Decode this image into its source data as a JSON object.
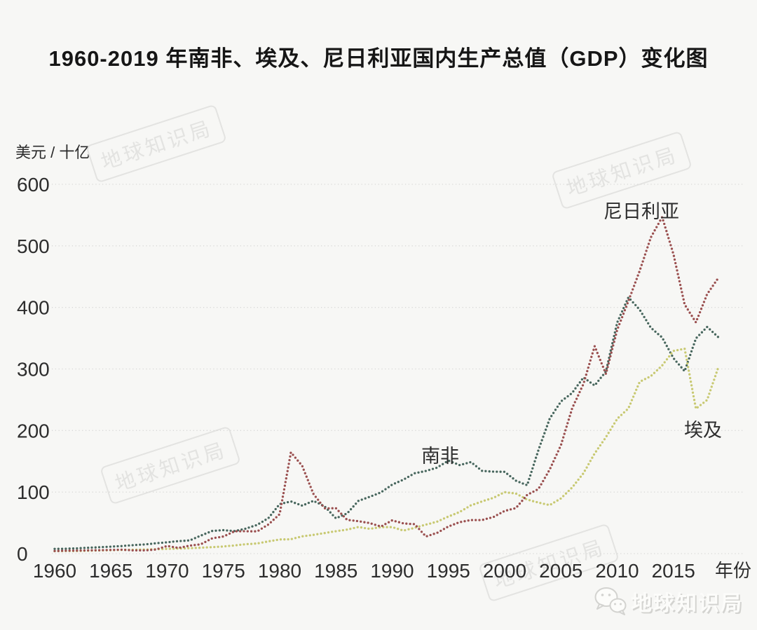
{
  "title": "1960-2019 年南非、埃及、尼日利亚国内生产总值（GDP）变化图",
  "y_unit_label": "美元 / 十亿",
  "watermark_text": "地球知识局",
  "logo_text": "地球知识局",
  "colors": {
    "background": "#f7f7f5",
    "grid": "#d8d8d6",
    "tick_text": "#2d2d2d",
    "south_africa": "#47665d",
    "egypt": "#c8c972",
    "nigeria": "#9a4f4f"
  },
  "chart_data": {
    "type": "line",
    "line_style": "dotted",
    "title": "1960-2019 年南非、埃及、尼日利亚国内生产总值（GDP）变化图",
    "xlabel": "年份",
    "ylabel": "美元 / 十亿",
    "x_start": 1960,
    "x_end": 2019,
    "x_ticks": [
      1960,
      1965,
      1970,
      1975,
      1980,
      1985,
      1990,
      1995,
      2000,
      2005,
      2010,
      2015
    ],
    "y_ticks": [
      0,
      100,
      200,
      300,
      400,
      500,
      600
    ],
    "ylim": [
      0,
      600
    ],
    "grid": true,
    "legend_position": "inline-annotations",
    "series": [
      {
        "name": "南非",
        "color": "#47665d",
        "values": [
          7.6,
          8.0,
          8.6,
          9.5,
          10.4,
          11.3,
          12.3,
          13.8,
          14.9,
          16.8,
          18.4,
          20.3,
          21.4,
          29.3,
          36.8,
          38.1,
          36.6,
          40.7,
          46.7,
          57.6,
          80.5,
          84.8,
          77.9,
          85.8,
          76.7,
          57.3,
          65.4,
          85.7,
          92.2,
          99.5,
          112.0,
          120.2,
          130.5,
          134.3,
          139.8,
          151.1,
          143.8,
          148.8,
          134.3,
          133.2,
          132.9,
          118.5,
          111.1,
          168.2,
          219.1,
          247.1,
          261.0,
          286.2,
          273.1,
          295.9,
          375.3,
          416.4,
          396.3,
          366.8,
          351.1,
          317.6,
          296.4,
          349.5,
          368.3,
          351.4
        ]
      },
      {
        "name": "埃及",
        "color": "#c8c972",
        "values": [
          4.0,
          4.2,
          4.3,
          4.7,
          5.1,
          5.6,
          6.0,
          6.3,
          6.6,
          7.1,
          7.7,
          8.2,
          8.8,
          9.6,
          10.5,
          11.6,
          13.3,
          15.3,
          16.5,
          19.9,
          22.9,
          23.4,
          28.0,
          30.5,
          33.4,
          36.4,
          39.0,
          43.2,
          40.2,
          43.0,
          43.1,
          37.4,
          41.9,
          47.1,
          51.9,
          60.2,
          67.6,
          78.4,
          84.8,
          90.7,
          99.8,
          97.6,
          87.8,
          82.9,
          78.8,
          89.6,
          107.4,
          130.5,
          162.8,
          189.1,
          218.9,
          236.0,
          279.1,
          288.4,
          305.5,
          329.4,
          332.9,
          235.4,
          249.7,
          303.1
        ]
      },
      {
        "name": "尼日利亚",
        "color": "#9a4f4f",
        "values": [
          4.2,
          4.7,
          4.9,
          5.2,
          5.6,
          5.9,
          6.4,
          5.2,
          5.2,
          6.6,
          12.5,
          9.2,
          12.9,
          15.2,
          24.8,
          27.8,
          36.3,
          36.4,
          36.1,
          47.3,
          64.2,
          164.5,
          142.6,
          97.1,
          73.5,
          73.7,
          54.8,
          52.7,
          49.6,
          44.0,
          54.0,
          49.1,
          47.8,
          27.8,
          33.8,
          44.1,
          51.1,
          54.5,
          54.6,
          59.4,
          69.4,
          74.0,
          95.4,
          104.9,
          136.4,
          176.1,
          236.1,
          275.6,
          337.0,
          291.9,
          363.4,
          410.3,
          459.4,
          514.0,
          546.7,
          486.8,
          404.7,
          375.7,
          421.7,
          448.1
        ]
      }
    ]
  }
}
